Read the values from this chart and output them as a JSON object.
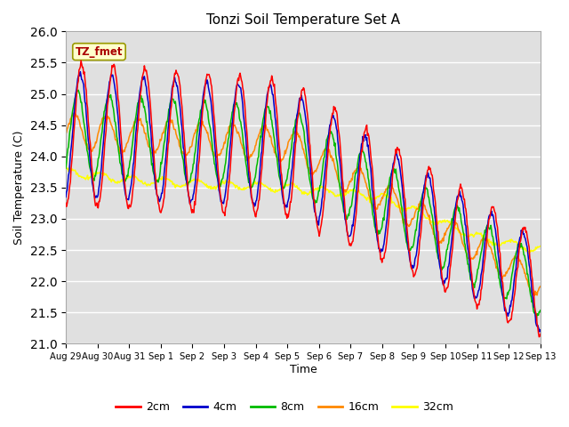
{
  "title": "Tonzi Soil Temperature Set A",
  "xlabel": "Time",
  "ylabel": "Soil Temperature (C)",
  "ylim": [
    21.0,
    26.0
  ],
  "yticks": [
    21.0,
    21.5,
    22.0,
    22.5,
    23.0,
    23.5,
    24.0,
    24.5,
    25.0,
    25.5,
    26.0
  ],
  "xtick_labels": [
    "Aug 29",
    "Aug 30",
    "Aug 31",
    "Sep 1",
    "Sep 2",
    "Sep 3",
    "Sep 4",
    "Sep 5",
    "Sep 6",
    "Sep 7",
    "Sep 8",
    "Sep 9",
    "Sep 10",
    "Sep 11",
    "Sep 12",
    "Sep 13"
  ],
  "annotation_text": "TZ_fmet",
  "bg_color": "#e0e0e0",
  "line_colors": {
    "2cm": "#ff0000",
    "4cm": "#0000cc",
    "8cm": "#00bb00",
    "16cm": "#ff8800",
    "32cm": "#ffff00"
  },
  "line_width": 1.1
}
